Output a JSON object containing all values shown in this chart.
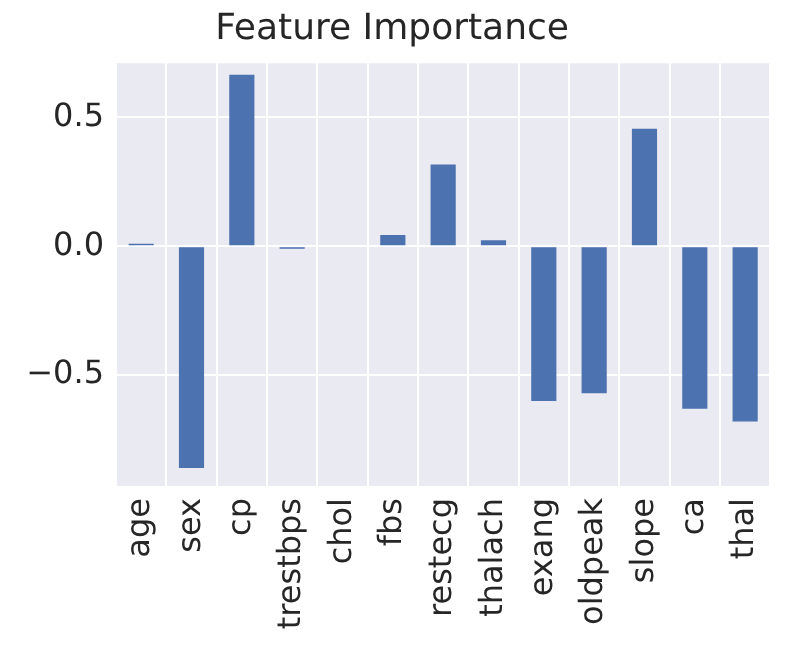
{
  "chart_data": {
    "type": "bar",
    "title": "Feature Importance",
    "categories": [
      "age",
      "sex",
      "cp",
      "trestbps",
      "chol",
      "fbs",
      "restecg",
      "thalach",
      "exang",
      "oldpeak",
      "slope",
      "ca",
      "thal"
    ],
    "values": [
      0.01,
      -0.86,
      0.665,
      -0.01,
      0.0,
      0.044,
      0.317,
      0.023,
      -0.6,
      -0.57,
      0.456,
      -0.63,
      -0.68
    ],
    "color": "#4c72b0",
    "ylim": [
      -0.93,
      0.71
    ],
    "yticks": [
      {
        "value": -0.5,
        "label": "−0.5"
      },
      {
        "value": 0,
        "label": "0.0"
      },
      {
        "value": 0.5,
        "label": "0.5"
      }
    ],
    "grid": true
  }
}
